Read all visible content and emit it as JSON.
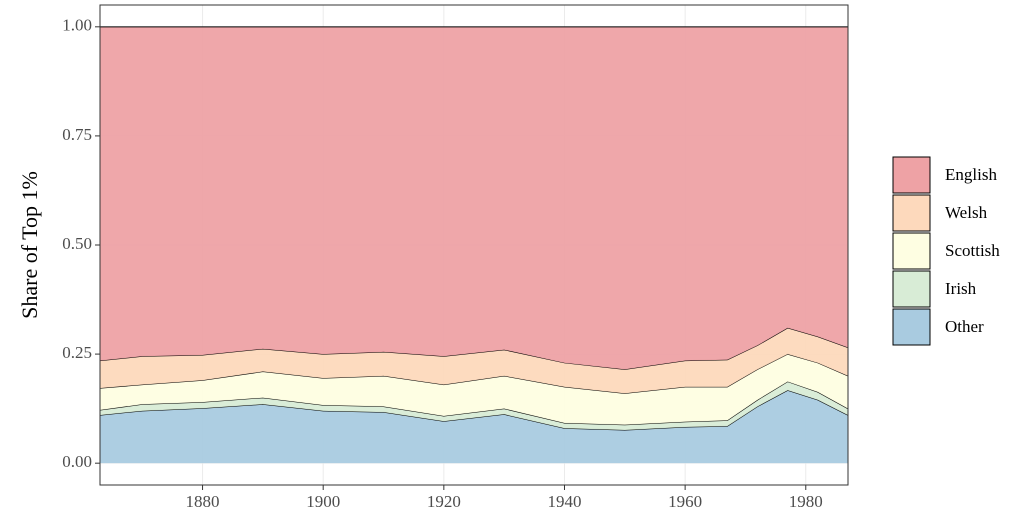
{
  "chart_data": {
    "type": "stacked_area",
    "y_label": "Share of Top 1%",
    "x": [
      1863,
      1870,
      1880,
      1890,
      1900,
      1910,
      1920,
      1930,
      1940,
      1950,
      1960,
      1967,
      1972,
      1977,
      1982,
      1987
    ],
    "series": [
      {
        "name": "English",
        "color": "#eea2a5",
        "values": [
          0.765,
          0.755,
          0.752,
          0.738,
          0.75,
          0.745,
          0.755,
          0.74,
          0.77,
          0.785,
          0.765,
          0.763,
          0.73,
          0.69,
          0.71,
          0.735
        ]
      },
      {
        "name": "Welsh",
        "color": "#fdd9bc",
        "values": [
          0.063,
          0.065,
          0.058,
          0.052,
          0.055,
          0.055,
          0.065,
          0.06,
          0.055,
          0.055,
          0.06,
          0.062,
          0.055,
          0.06,
          0.06,
          0.065
        ]
      },
      {
        "name": "Scottish",
        "color": "#fefee2",
        "values": [
          0.05,
          0.045,
          0.05,
          0.06,
          0.062,
          0.07,
          0.072,
          0.075,
          0.083,
          0.072,
          0.08,
          0.077,
          0.07,
          0.063,
          0.067,
          0.075
        ]
      },
      {
        "name": "Irish",
        "color": "#d8ecd6",
        "values": [
          0.012,
          0.015,
          0.014,
          0.015,
          0.013,
          0.013,
          0.012,
          0.013,
          0.012,
          0.012,
          0.012,
          0.013,
          0.015,
          0.02,
          0.018,
          0.015
        ]
      },
      {
        "name": "Other",
        "color": "#a9cbe0",
        "values": [
          0.11,
          0.12,
          0.126,
          0.135,
          0.12,
          0.117,
          0.096,
          0.112,
          0.08,
          0.076,
          0.083,
          0.085,
          0.13,
          0.167,
          0.145,
          0.11
        ]
      }
    ],
    "xlim": [
      1863,
      1987
    ],
    "xticks": [
      1880,
      1900,
      1920,
      1940,
      1960,
      1980
    ],
    "ylim": [
      -0.05,
      1.05
    ],
    "yticks": [
      {
        "value": 0,
        "label": "0.00"
      },
      {
        "value": 0.25,
        "label": "0.25"
      },
      {
        "value": 0.5,
        "label": "0.50"
      },
      {
        "value": 0.75,
        "label": "0.75"
      },
      {
        "value": 1,
        "label": "1.00"
      }
    ],
    "grid": true,
    "legend": "right"
  }
}
